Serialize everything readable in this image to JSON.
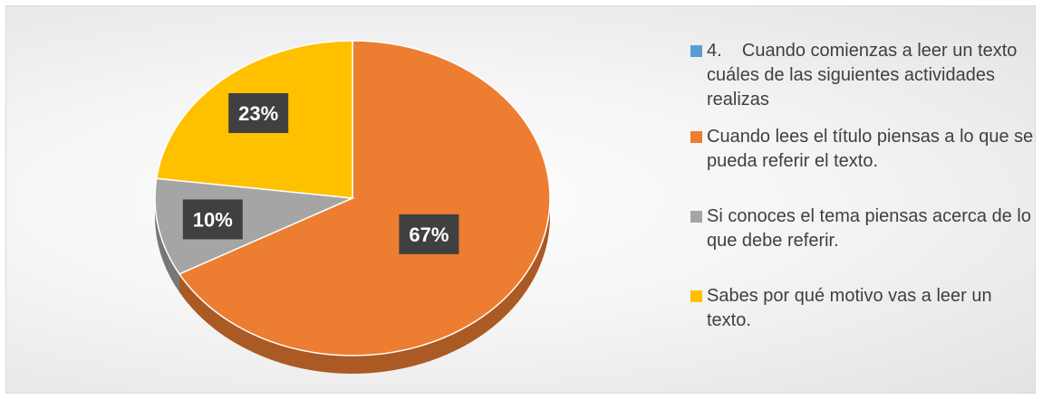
{
  "chart_data": {
    "type": "pie",
    "title": "",
    "slices": [
      {
        "label": "4.    Cuando comienzas a leer un texto cuáles de las siguientes actividades realizas",
        "value": 0,
        "data_label": "",
        "color": "#5b9bd5"
      },
      {
        "label": "Cuando lees el título piensas a lo que se pueda referir el texto.",
        "value": 67,
        "data_label": "67%",
        "color": "#ed7d31"
      },
      {
        "label": "Si conoces el tema piensas acerca de lo que debe referir.",
        "value": 10,
        "data_label": "10%",
        "color": "#a5a5a5"
      },
      {
        "label": "Sabes por qué motivo vas a leer un texto.",
        "value": 23,
        "data_label": "23%",
        "color": "#ffc000"
      }
    ],
    "legend_position": "right",
    "style": "3d"
  }
}
